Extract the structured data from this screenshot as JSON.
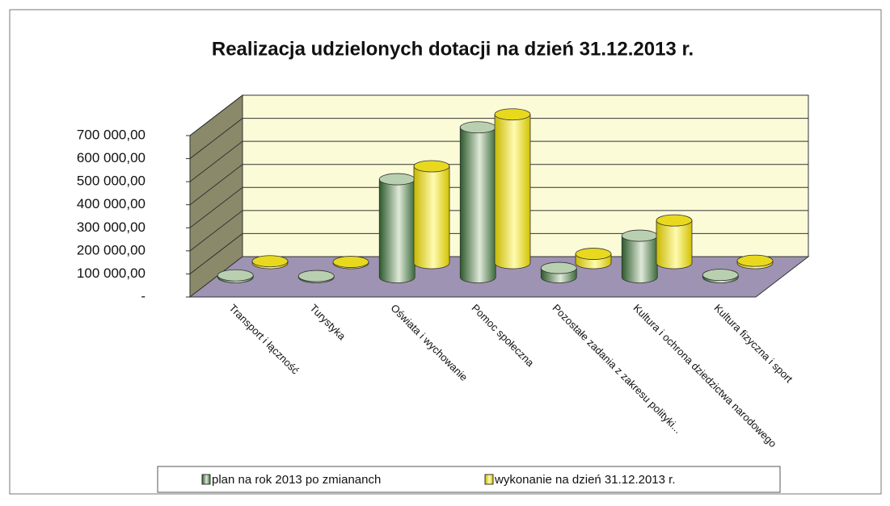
{
  "chart_data": {
    "type": "bar3d",
    "title": "Realizacja udzielonych dotacji na dzień 31.12.2013 r.",
    "categories": [
      "Transport i łączność",
      "Turystyka",
      "Oświata i wychowanie",
      "Pomoc społeczna",
      "Pozostałe zadania z zakresu polityki...",
      "Kultura i ochrona dziedzictwa narodowego",
      "Kultura fizyczna i sport"
    ],
    "series": [
      {
        "name": "plan na rok 2013 po zmiananch",
        "color": "#4a7a45",
        "values": [
          8000,
          5000,
          425000,
          650000,
          40000,
          180000,
          10000
        ]
      },
      {
        "name": "wykonanie  na dzień 31.12.2013 r.",
        "color": "#e6d800",
        "values": [
          8000,
          5000,
          420000,
          645000,
          40000,
          185000,
          10000
        ]
      }
    ],
    "ylim": [
      0,
      700000
    ],
    "yticks": [
      {
        "value": 0,
        "label": "-"
      },
      {
        "value": 100000,
        "label": "100 000,00"
      },
      {
        "value": 200000,
        "label": "200 000,00"
      },
      {
        "value": 300000,
        "label": "300 000,00"
      },
      {
        "value": 400000,
        "label": "400 000,00"
      },
      {
        "value": 500000,
        "label": "500 000,00"
      },
      {
        "value": 600000,
        "label": "600 000,00"
      },
      {
        "value": 700000,
        "label": "700 000,00"
      }
    ],
    "grid": true
  }
}
